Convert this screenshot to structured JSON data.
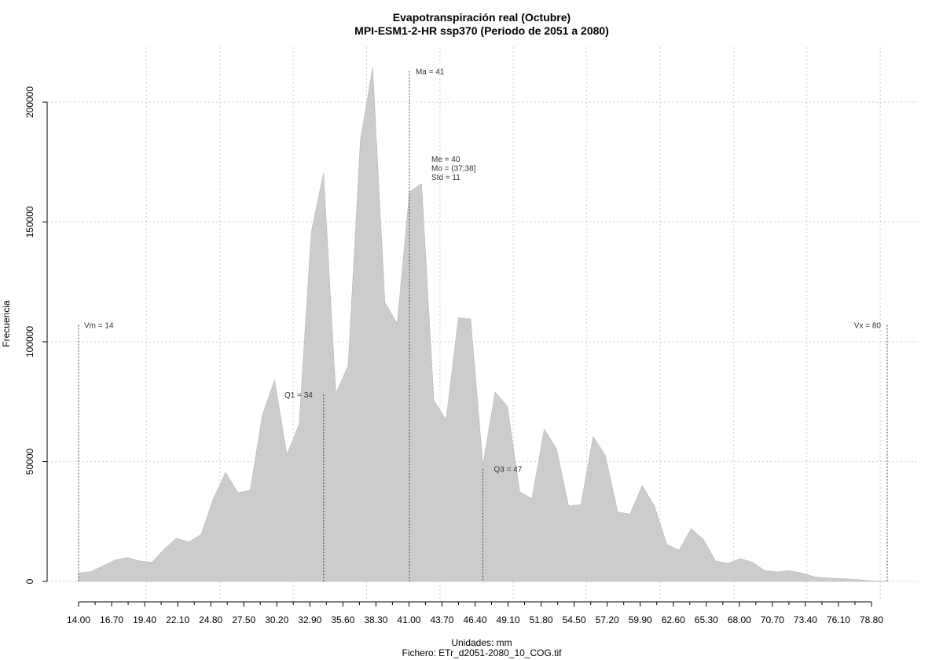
{
  "chart_data": {
    "type": "area",
    "title": "Evapotranspiración real (Octubre)",
    "subtitle": "MPI-ESM1-2-HR ssp370 (Periodo de 2051 a 2080)",
    "xlabel": "Unidades: mm",
    "ylabel": "Frecuencia",
    "footer": "Fichero: ETr_d2051-2080_10_COG.tif",
    "xlim": [
      14,
      80
    ],
    "ylim": [
      0,
      215000
    ],
    "grid": true,
    "fill_color": "#cccccc",
    "x_ticks": [
      "14.00",
      "16.70",
      "19.40",
      "22.10",
      "24.80",
      "27.50",
      "30.20",
      "32.90",
      "35.60",
      "38.30",
      "41.00",
      "43.70",
      "46.40",
      "49.10",
      "51.80",
      "54.50",
      "57.20",
      "59.90",
      "62.60",
      "65.30",
      "68.00",
      "70.70",
      "73.40",
      "76.10",
      "78.80"
    ],
    "y_ticks": [
      "0",
      "50000",
      "100000",
      "150000",
      "200000"
    ],
    "x": [
      14.0,
      15.0,
      16.0,
      17.0,
      18.0,
      19.0,
      20.0,
      21.0,
      22.0,
      23.0,
      24.0,
      25.0,
      26.0,
      27.0,
      28.0,
      29.0,
      30.0,
      31.0,
      32.0,
      33.0,
      34.0,
      35.0,
      36.0,
      37.0,
      38.0,
      39.0,
      40.0,
      41.0,
      42.0,
      43.0,
      44.0,
      45.0,
      46.0,
      47.0,
      48.0,
      49.0,
      50.0,
      51.0,
      52.0,
      53.0,
      54.0,
      55.0,
      56.0,
      57.0,
      58.0,
      59.0,
      60.0,
      61.0,
      62.0,
      63.0,
      64.0,
      65.0,
      66.0,
      67.0,
      68.0,
      69.0,
      70.0,
      71.0,
      72.0,
      73.0,
      74.0,
      75.0,
      76.0,
      77.0,
      78.0,
      79.0,
      80.0
    ],
    "y": [
      3500,
      4000,
      6500,
      9000,
      10000,
      8500,
      8000,
      13500,
      18000,
      16500,
      19500,
      34500,
      45500,
      37000,
      38000,
      69500,
      84000,
      53000,
      65500,
      146000,
      170500,
      78500,
      90000,
      184000,
      214500,
      116500,
      107500,
      162500,
      166000,
      75500,
      67500,
      110000,
      109500,
      48500,
      79000,
      73000,
      37500,
      34500,
      63500,
      55500,
      31500,
      32000,
      60500,
      52500,
      29000,
      28000,
      40000,
      31500,
      15500,
      13000,
      22000,
      17500,
      8500,
      7500,
      9500,
      8000,
      4500,
      4000,
      4500,
      3500,
      2000,
      1500,
      1200,
      1000,
      600,
      200,
      100
    ],
    "annotations": {
      "vm": "Vm = 14",
      "vx": "Vx = 80",
      "ma": "Ma = 41",
      "q1": "Q1 = 34",
      "q3": "Q3 = 47",
      "stats": [
        "Me = 40",
        "Mo = (37,38]",
        "Std = 11"
      ]
    },
    "markers": [
      {
        "id": "vm",
        "x": 14,
        "top": 107000
      },
      {
        "id": "q1",
        "x": 34,
        "top": 78000
      },
      {
        "id": "ma",
        "x": 41,
        "top": 213000
      },
      {
        "id": "q3",
        "x": 47,
        "top": 47000
      },
      {
        "id": "vx",
        "x": 80,
        "top": 107000
      }
    ]
  }
}
